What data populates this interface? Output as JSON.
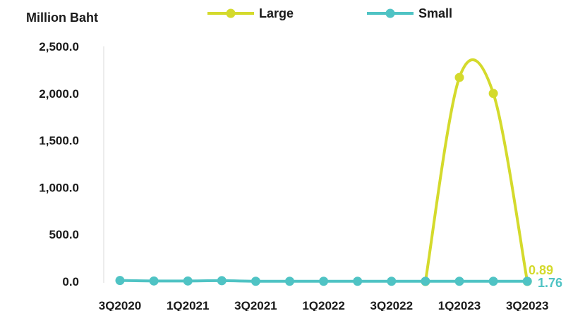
{
  "chart_data": {
    "type": "line",
    "ylabel": "Million Baht",
    "ylim": [
      0,
      2500
    ],
    "yticks": [
      "0.0",
      "500.0",
      "1,000.0",
      "1,500.0",
      "2,000.0",
      "2,500.0"
    ],
    "ytick_values": [
      0,
      500,
      1000,
      1500,
      2000,
      2500
    ],
    "categories": [
      "3Q2020",
      "4Q2020",
      "1Q2021",
      "2Q2021",
      "3Q2021",
      "4Q2021",
      "1Q2022",
      "2Q2022",
      "3Q2022",
      "4Q2022",
      "1Q2023",
      "2Q2023",
      "3Q2023"
    ],
    "xtick_labels": [
      "3Q2020",
      "1Q2021",
      "3Q2021",
      "1Q2022",
      "3Q2022",
      "1Q2023",
      "3Q2023"
    ],
    "series": [
      {
        "name": "Large",
        "color": "#d4da2c",
        "values": [
          null,
          null,
          null,
          null,
          null,
          null,
          null,
          null,
          null,
          0,
          2170,
          2000,
          0.89
        ],
        "end_label": "0.89"
      },
      {
        "name": "Small",
        "color": "#4fc3c4",
        "values": [
          10,
          5,
          5,
          8,
          2,
          2,
          2,
          2,
          2,
          2,
          2,
          2,
          1.76
        ],
        "end_label": "1.76"
      }
    ],
    "legend_position": "top",
    "grid": false
  }
}
